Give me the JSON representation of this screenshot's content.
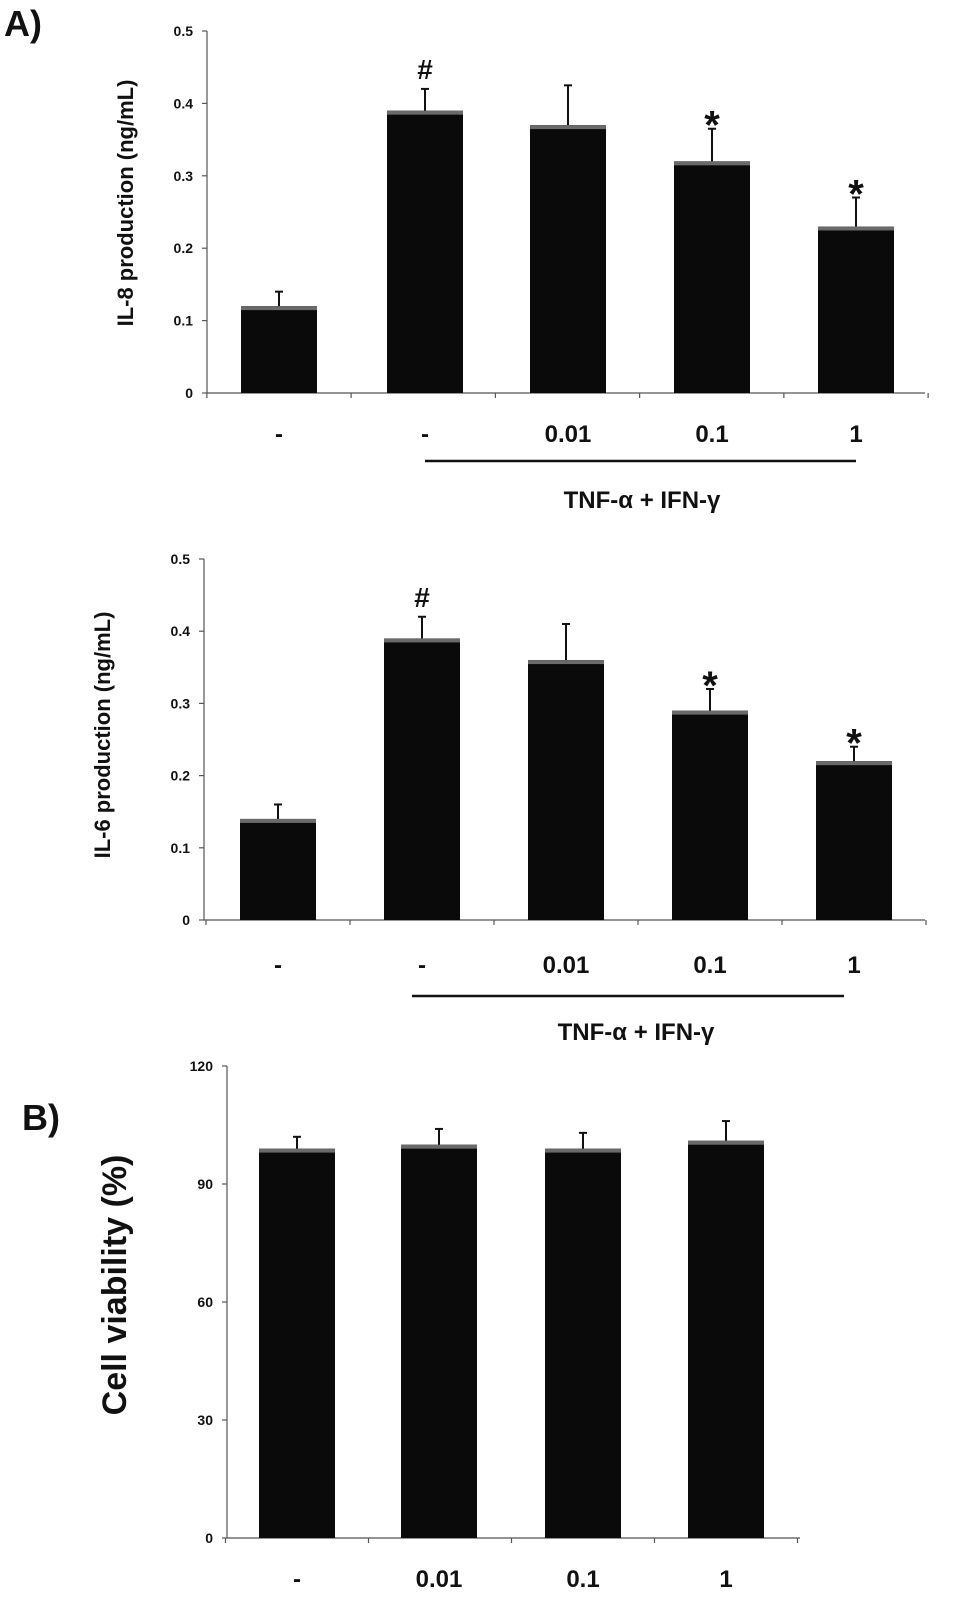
{
  "figure": {
    "panel_a_label": "A)",
    "panel_b_label": "B)"
  },
  "chart_data": [
    {
      "type": "bar",
      "id": "il8",
      "ylabel": "IL-8 production (ng/mL)",
      "ylim": [
        0,
        0.5
      ],
      "yticks": [
        "0",
        "0.1",
        "0.2",
        "0.3",
        "0.4",
        "0.5"
      ],
      "categories": [
        "-",
        "-",
        "0.01",
        "0.1",
        "1"
      ],
      "values": [
        0.12,
        0.39,
        0.37,
        0.32,
        0.23
      ],
      "errors": [
        0.02,
        0.03,
        0.055,
        0.045,
        0.04
      ],
      "markers": [
        "",
        "#",
        "",
        "*",
        "*"
      ],
      "group_label": "TNF-α + IFN-γ",
      "group_span": [
        1,
        4
      ]
    },
    {
      "type": "bar",
      "id": "il6",
      "ylabel": "IL-6 production (ng/mL)",
      "ylim": [
        0,
        0.5
      ],
      "yticks": [
        "0",
        "0.1",
        "0.2",
        "0.3",
        "0.4",
        "0.5"
      ],
      "categories": [
        "-",
        "-",
        "0.01",
        "0.1",
        "1"
      ],
      "values": [
        0.14,
        0.39,
        0.36,
        0.29,
        0.22
      ],
      "errors": [
        0.02,
        0.03,
        0.05,
        0.03,
        0.02
      ],
      "markers": [
        "",
        "#",
        "",
        "*",
        "*"
      ],
      "group_label": "TNF-α + IFN-γ",
      "group_span": [
        1,
        4
      ]
    },
    {
      "type": "bar",
      "id": "viability",
      "ylabel": "Cell viability (%)",
      "ylim": [
        0,
        120
      ],
      "yticks": [
        "0",
        "30",
        "60",
        "90",
        "120"
      ],
      "categories": [
        "-",
        "0.01",
        "0.1",
        "1"
      ],
      "values": [
        99,
        100,
        99,
        101
      ],
      "errors": [
        3,
        4,
        4,
        5
      ],
      "markers": [
        "",
        "",
        "",
        ""
      ],
      "group_label": "",
      "group_span": null
    }
  ]
}
